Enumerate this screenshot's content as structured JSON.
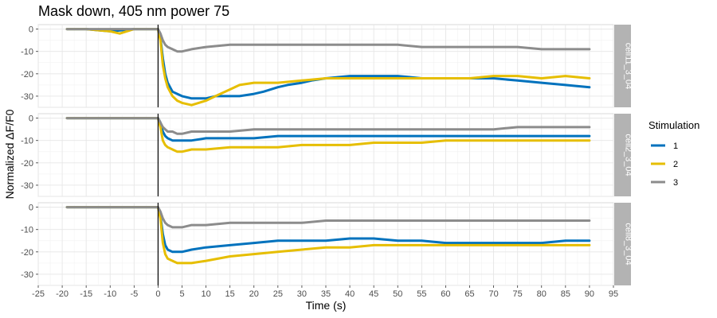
{
  "chart_data": {
    "type": "line",
    "title": "Mask down, 405 nm power 75",
    "xlabel": "Time (s)",
    "ylabel": "Normalized ΔF/F0",
    "xlim": [
      -25,
      95
    ],
    "ylim": [
      -35,
      2
    ],
    "x_ticks": [
      "-25",
      "-20",
      "-15",
      "-10",
      "-5",
      "0",
      "5",
      "10",
      "15",
      "20",
      "25",
      "30",
      "35",
      "40",
      "45",
      "50",
      "55",
      "60",
      "65",
      "70",
      "75",
      "80",
      "85",
      "90",
      "95"
    ],
    "y_ticks": [
      "0",
      "-10",
      "-20",
      "-30"
    ],
    "vline_x": 0,
    "grid": true,
    "legend": {
      "title": "Stimulation",
      "position": "right",
      "entries": [
        {
          "label": "1",
          "color": "#0072BD"
        },
        {
          "label": "2",
          "color": "#E6BE00"
        },
        {
          "label": "3",
          "color": "#8C8C8C"
        }
      ]
    },
    "facets": [
      {
        "label": "cell11_3_04",
        "series": [
          {
            "name": "1",
            "color": "#0072BD",
            "x": [
              -19,
              -15,
              -10,
              -5,
              -2,
              0,
              0.5,
              1,
              1.5,
              2,
              3,
              4,
              5,
              7,
              10,
              12,
              15,
              17,
              20,
              22,
              25,
              27,
              30,
              32,
              35,
              40,
              45,
              50,
              55,
              60,
              65,
              70,
              75,
              80,
              85,
              90
            ],
            "y": [
              0,
              0,
              -1,
              0,
              0,
              0,
              -4,
              -13,
              -20,
              -24,
              -28,
              -29,
              -30,
              -31,
              -31,
              -30,
              -30,
              -30,
              -29,
              -28,
              -26,
              -25,
              -24,
              -23,
              -22,
              -21,
              -21,
              -21,
              -22,
              -22,
              -22,
              -22,
              -23,
              -24,
              -25,
              -26
            ]
          },
          {
            "name": "2",
            "color": "#E6BE00",
            "x": [
              -19,
              -15,
              -10,
              -8,
              -5,
              -2,
              0,
              0.5,
              1,
              1.5,
              2,
              3,
              4,
              5,
              7,
              10,
              12,
              15,
              17,
              20,
              25,
              30,
              35,
              40,
              45,
              50,
              55,
              60,
              65,
              70,
              75,
              80,
              85,
              90
            ],
            "y": [
              0,
              0,
              -1,
              -2,
              0,
              0,
              0,
              -5,
              -16,
              -22,
              -26,
              -30,
              -32,
              -33,
              -34,
              -32,
              -30,
              -27,
              -25,
              -24,
              -24,
              -23,
              -22,
              -22,
              -22,
              -22,
              -22,
              -22,
              -22,
              -21,
              -21,
              -22,
              -21,
              -22
            ]
          },
          {
            "name": "3",
            "color": "#8C8C8C",
            "x": [
              -19,
              -15,
              -10,
              -5,
              -2,
              0,
              0.5,
              1,
              1.5,
              2,
              3,
              4,
              5,
              7,
              10,
              15,
              20,
              25,
              30,
              35,
              40,
              45,
              50,
              55,
              60,
              65,
              70,
              75,
              80,
              85,
              90
            ],
            "y": [
              0,
              0,
              0,
              0,
              0,
              0,
              -2,
              -5,
              -7,
              -8,
              -9,
              -10,
              -10,
              -9,
              -8,
              -7,
              -7,
              -7,
              -7,
              -7,
              -7,
              -7,
              -7,
              -8,
              -8,
              -8,
              -8,
              -8,
              -9,
              -9,
              -9
            ]
          }
        ]
      },
      {
        "label": "cell2_3_04",
        "series": [
          {
            "name": "1",
            "color": "#0072BD",
            "x": [
              -19,
              -15,
              -10,
              -5,
              -2,
              0,
              0.5,
              1,
              1.5,
              2,
              3,
              4,
              5,
              7,
              10,
              15,
              20,
              25,
              30,
              35,
              40,
              45,
              50,
              55,
              60,
              65,
              70,
              75,
              80,
              85,
              90
            ],
            "y": [
              0,
              0,
              0,
              0,
              0,
              0,
              -2,
              -6,
              -8,
              -9,
              -10,
              -10,
              -10,
              -10,
              -9,
              -9,
              -9,
              -8,
              -8,
              -8,
              -8,
              -8,
              -8,
              -8,
              -8,
              -8,
              -8,
              -8,
              -8,
              -8,
              -8
            ]
          },
          {
            "name": "2",
            "color": "#E6BE00",
            "x": [
              -19,
              -15,
              -10,
              -5,
              -2,
              0,
              0.5,
              1,
              1.5,
              2,
              3,
              4,
              5,
              7,
              10,
              15,
              20,
              25,
              30,
              35,
              40,
              45,
              50,
              55,
              60,
              65,
              70,
              75,
              80,
              85,
              90
            ],
            "y": [
              0,
              0,
              0,
              0,
              0,
              0,
              -4,
              -10,
              -12,
              -13,
              -14,
              -15,
              -15,
              -14,
              -14,
              -13,
              -13,
              -13,
              -12,
              -12,
              -12,
              -11,
              -11,
              -11,
              -10,
              -10,
              -10,
              -10,
              -10,
              -10,
              -10
            ]
          },
          {
            "name": "3",
            "color": "#8C8C8C",
            "x": [
              -19,
              -15,
              -10,
              -5,
              -2,
              0,
              0.5,
              1,
              1.5,
              2,
              3,
              4,
              5,
              7,
              10,
              15,
              20,
              25,
              30,
              35,
              40,
              45,
              50,
              55,
              60,
              65,
              70,
              75,
              80,
              85,
              90
            ],
            "y": [
              0,
              0,
              0,
              0,
              0,
              0,
              -2,
              -4,
              -5,
              -6,
              -6,
              -7,
              -7,
              -6,
              -6,
              -6,
              -5,
              -5,
              -5,
              -5,
              -5,
              -5,
              -5,
              -5,
              -5,
              -5,
              -5,
              -4,
              -4,
              -4,
              -4
            ]
          }
        ]
      },
      {
        "label": "cell8_3_04",
        "series": [
          {
            "name": "1",
            "color": "#0072BD",
            "x": [
              -19,
              -15,
              -10,
              -5,
              -2,
              0,
              0.5,
              1,
              1.5,
              2,
              3,
              4,
              5,
              7,
              10,
              15,
              20,
              25,
              30,
              35,
              40,
              45,
              50,
              55,
              60,
              65,
              70,
              75,
              80,
              85,
              90
            ],
            "y": [
              0,
              0,
              0,
              0,
              0,
              0,
              -4,
              -12,
              -17,
              -19,
              -20,
              -20,
              -20,
              -19,
              -18,
              -17,
              -16,
              -15,
              -15,
              -15,
              -14,
              -14,
              -15,
              -15,
              -16,
              -16,
              -16,
              -16,
              -16,
              -15,
              -15
            ]
          },
          {
            "name": "2",
            "color": "#E6BE00",
            "x": [
              -19,
              -15,
              -10,
              -5,
              -2,
              0,
              0.5,
              1,
              1.5,
              2,
              3,
              4,
              5,
              7,
              10,
              15,
              20,
              25,
              30,
              35,
              40,
              45,
              50,
              55,
              60,
              65,
              70,
              75,
              80,
              85,
              90
            ],
            "y": [
              0,
              0,
              0,
              0,
              0,
              0,
              -5,
              -16,
              -21,
              -23,
              -24,
              -25,
              -25,
              -25,
              -24,
              -22,
              -21,
              -20,
              -19,
              -18,
              -18,
              -17,
              -17,
              -17,
              -17,
              -17,
              -17,
              -17,
              -17,
              -17,
              -17
            ]
          },
          {
            "name": "3",
            "color": "#8C8C8C",
            "x": [
              -19,
              -15,
              -10,
              -5,
              -2,
              0,
              0.5,
              1,
              1.5,
              2,
              3,
              4,
              5,
              7,
              10,
              15,
              20,
              25,
              30,
              35,
              40,
              45,
              50,
              55,
              60,
              65,
              70,
              75,
              80,
              85,
              90
            ],
            "y": [
              0,
              0,
              0,
              0,
              0,
              0,
              -2,
              -5,
              -7,
              -8,
              -9,
              -9,
              -9,
              -8,
              -8,
              -7,
              -7,
              -7,
              -7,
              -6,
              -6,
              -6,
              -6,
              -6,
              -6,
              -6,
              -6,
              -6,
              -6,
              -6,
              -6
            ]
          }
        ]
      }
    ]
  }
}
